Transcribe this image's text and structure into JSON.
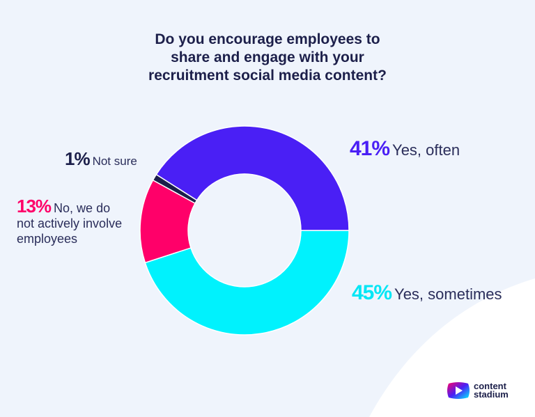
{
  "chart_data": {
    "type": "pie",
    "style": "donut",
    "title": "Do you encourage employees to share and engage with your recruitment social media content?",
    "title_lines": [
      "Do you encourage employees to",
      "share and engage with your",
      "recruitment social media content?"
    ],
    "slices": [
      {
        "label": "Yes, often",
        "value": 41,
        "pct_label": "41%",
        "color": "#4a1ff5"
      },
      {
        "label": "Yes, sometimes",
        "value": 45,
        "pct_label": "45%",
        "color": "#00f2fd"
      },
      {
        "label": "No, we do not actively involve employees",
        "value": 13,
        "pct_label": "13%",
        "color": "#ff0069"
      },
      {
        "label": "Not sure",
        "value": 1,
        "pct_label": "1%",
        "color": "#1c1f4a"
      }
    ],
    "start_position": "3 o'clock, Yes, sometimes proceeds clockwise",
    "legend": "direct labels around donut"
  },
  "label_lines": {
    "no_line1": "No, we do",
    "no_line2": "not actively involve",
    "no_line3": "employees"
  },
  "brand": {
    "logo_text_1": "content",
    "logo_text_2": "stadium"
  }
}
